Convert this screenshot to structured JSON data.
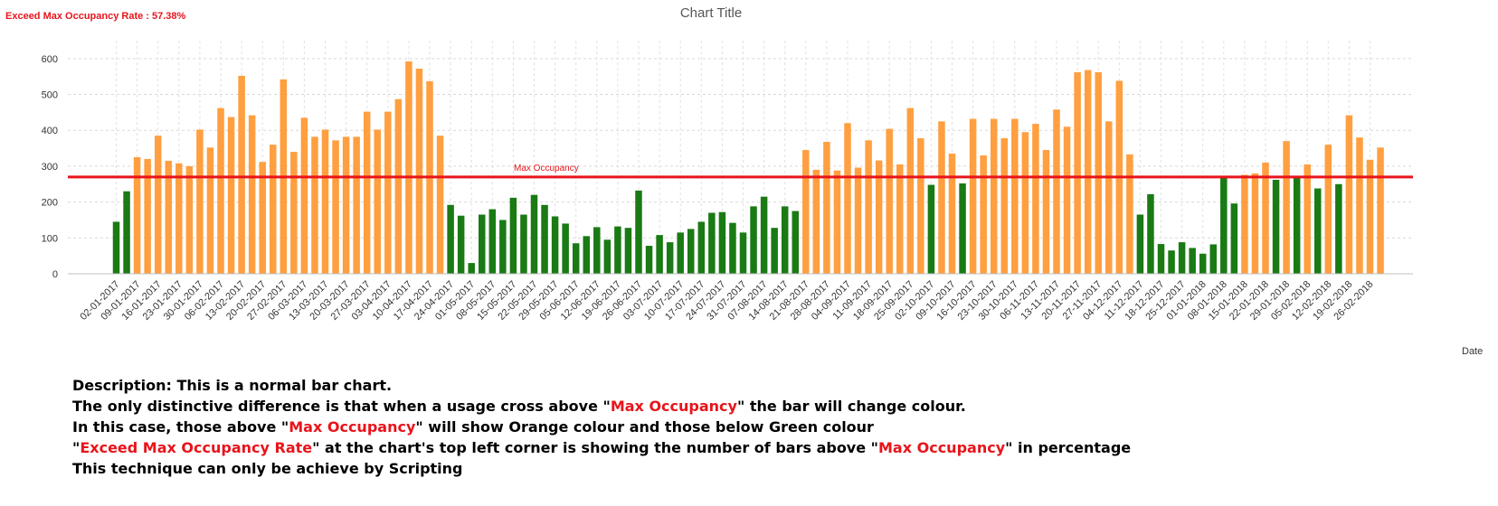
{
  "header": {
    "rate_label": "Exceed Max Occupancy Rate : 57.38%",
    "title": "Chart Title"
  },
  "chart_data": {
    "type": "bar",
    "title": "Chart Title",
    "xlabel": "Date",
    "ylabel": "",
    "ylim": [
      0,
      650
    ],
    "yticks": [
      0,
      100,
      200,
      300,
      400,
      500,
      600
    ],
    "grid": true,
    "threshold": {
      "label": "Max Occupancy",
      "value": 270,
      "color": "#e8141b"
    },
    "colors": {
      "above": "#ff9f40",
      "below": "#1a7a14"
    },
    "tick_labels": [
      "02-01-2017",
      "09-01-2017",
      "16-01-2017",
      "23-01-2017",
      "30-01-2017",
      "06-02-2017",
      "13-02-2017",
      "20-02-2017",
      "27-02-2017",
      "06-03-2017",
      "13-03-2017",
      "20-03-2017",
      "27-03-2017",
      "03-04-2017",
      "10-04-2017",
      "17-04-2017",
      "24-04-2017",
      "01-05-2017",
      "08-05-2017",
      "15-05-2017",
      "22-05-2017",
      "29-05-2017",
      "05-06-2017",
      "12-06-2017",
      "19-06-2017",
      "26-06-2017",
      "03-07-2017",
      "10-07-2017",
      "17-07-2017",
      "24-07-2017",
      "31-07-2017",
      "07-08-2017",
      "14-08-2017",
      "21-08-2017",
      "28-08-2017",
      "04-09-2017",
      "11-09-2017",
      "18-09-2017",
      "25-09-2017",
      "02-10-2017",
      "09-10-2017",
      "16-10-2017",
      "23-10-2017",
      "30-10-2017",
      "06-11-2017",
      "13-11-2017",
      "20-11-2017",
      "27-11-2017",
      "04-12-2017",
      "11-12-2017",
      "18-12-2017",
      "25-12-2017",
      "01-01-2018",
      "08-01-2018",
      "15-01-2018",
      "22-01-2018",
      "29-01-2018",
      "05-02-2018",
      "12-02-2018",
      "19-02-2018",
      "26-02-2018"
    ],
    "values": [
      145,
      230,
      325,
      320,
      385,
      315,
      308,
      300,
      402,
      352,
      462,
      437,
      552,
      442,
      312,
      360,
      542,
      340,
      435,
      382,
      402,
      372,
      382,
      382,
      452,
      402,
      452,
      487,
      592,
      572,
      537,
      385,
      192,
      162,
      30,
      165,
      180,
      150,
      212,
      165,
      220,
      192,
      160,
      140,
      85,
      105,
      130,
      95,
      132,
      128,
      232,
      78,
      108,
      88,
      115,
      125,
      145,
      170,
      172,
      142,
      115,
      188,
      215,
      128,
      188,
      175,
      345,
      290,
      368,
      288,
      420,
      296,
      372,
      316,
      404,
      305,
      462,
      378,
      248,
      425,
      335,
      252,
      432,
      330,
      432,
      378,
      432,
      395,
      418,
      345,
      458,
      410,
      562,
      568,
      562,
      425,
      538,
      333,
      165,
      222,
      83,
      65,
      88,
      72,
      56,
      82,
      268,
      196,
      276,
      280,
      310,
      262,
      370,
      268,
      305,
      238,
      360,
      250,
      442,
      380,
      318,
      352
    ]
  },
  "description": {
    "line1": "Description: This is a normal bar chart.",
    "line2": {
      "before": "The only distinctive difference is that when a usage cross above \"",
      "hl": "Max Occupancy",
      "after": "\" the bar will change colour."
    },
    "line3": {
      "before": "In this case, those above \"",
      "hl": "Max Occupancy",
      "after": "\" will show Orange colour and those below Green colour"
    },
    "line4": {
      "q1": "\"",
      "hl1": "Exceed Max Occupancy Rate",
      "mid": "\" at the chart's top left corner is showing the number of bars above \"",
      "hl2": "Max Occupancy",
      "after": "\" in percentage"
    },
    "line5": "This technique can only be achieve by Scripting"
  }
}
